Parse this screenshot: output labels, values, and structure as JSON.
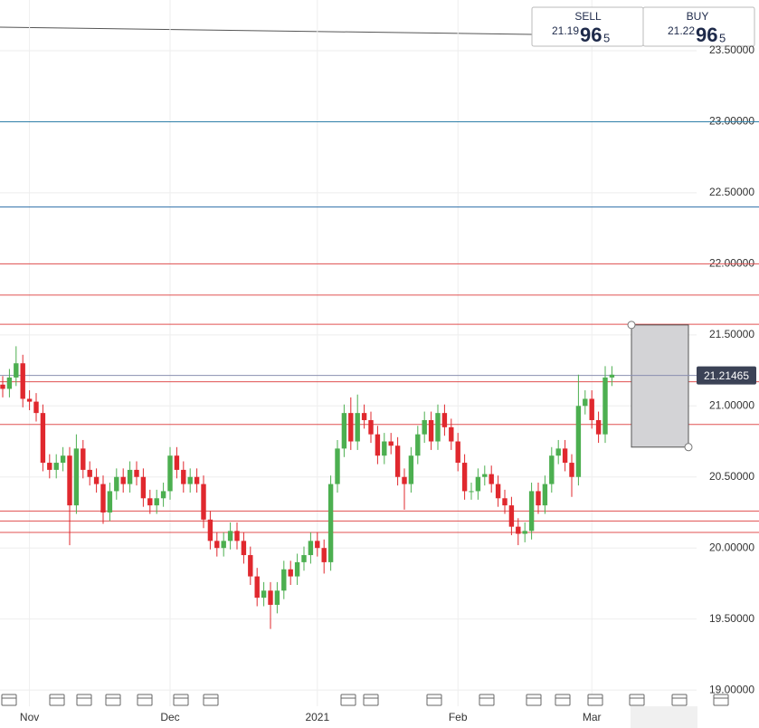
{
  "chart_data": {
    "type": "candlestick",
    "categories": [
      null,
      null,
      null,
      null,
      "Nov",
      null,
      null,
      null,
      null,
      null,
      null,
      null,
      null,
      null,
      null,
      null,
      null,
      null,
      null,
      null,
      null,
      null,
      null,
      null,
      null,
      "Dec",
      null,
      null,
      null,
      null,
      null,
      null,
      null,
      null,
      null,
      null,
      null,
      null,
      null,
      null,
      null,
      null,
      null,
      null,
      null,
      null,
      null,
      "2021",
      null,
      null,
      null,
      null,
      null,
      null,
      null,
      null,
      null,
      null,
      null,
      null,
      null,
      null,
      null,
      null,
      null,
      null,
      null,
      null,
      "Feb",
      null,
      null,
      null,
      null,
      null,
      null,
      null,
      null,
      null,
      null,
      null,
      null,
      null,
      null,
      null,
      null,
      null,
      null,
      null,
      "Mar",
      null,
      null,
      null
    ],
    "open": [
      21.15,
      21.12,
      21.2,
      21.3,
      21.05,
      21.03,
      20.95,
      20.6,
      20.55,
      20.6,
      20.65,
      20.3,
      20.7,
      20.55,
      20.5,
      20.45,
      20.25,
      20.4,
      20.5,
      20.45,
      20.55,
      20.5,
      20.35,
      20.3,
      20.35,
      20.4,
      20.65,
      20.55,
      20.45,
      20.5,
      20.45,
      20.2,
      20.05,
      20.0,
      20.05,
      20.12,
      20.05,
      19.95,
      19.8,
      19.65,
      19.7,
      19.6,
      19.7,
      19.85,
      19.8,
      19.9,
      19.95,
      20.05,
      20.0,
      19.9,
      20.45,
      20.7,
      20.95,
      20.75,
      20.95,
      20.9,
      20.8,
      20.65,
      20.75,
      20.72,
      20.5,
      20.45,
      20.65,
      20.8,
      20.9,
      20.75,
      20.95,
      20.85,
      20.75,
      20.6,
      20.4,
      20.4,
      20.5,
      20.52,
      20.45,
      20.35,
      20.3,
      20.15,
      20.1,
      20.12,
      20.4,
      20.3,
      20.45,
      20.65,
      20.7,
      20.6,
      20.5,
      21.0,
      21.05,
      20.9,
      20.8,
      21.2
    ],
    "high": [
      21.21,
      21.26,
      21.42,
      21.36,
      21.11,
      21.09,
      21.01,
      20.66,
      20.66,
      20.71,
      20.71,
      20.8,
      20.76,
      20.61,
      20.56,
      20.51,
      20.46,
      20.56,
      20.56,
      20.61,
      20.61,
      20.56,
      20.41,
      20.41,
      20.46,
      20.71,
      20.71,
      20.61,
      20.56,
      20.56,
      20.51,
      20.26,
      20.11,
      20.11,
      20.18,
      20.18,
      20.11,
      20.01,
      19.86,
      19.76,
      19.76,
      19.76,
      19.91,
      19.91,
      19.96,
      20.01,
      20.11,
      20.11,
      20.06,
      20.51,
      20.76,
      21.01,
      21.06,
      21.08,
      21.01,
      20.96,
      20.86,
      20.81,
      20.81,
      20.78,
      20.56,
      20.71,
      20.86,
      20.96,
      20.96,
      21.01,
      21.01,
      20.91,
      20.81,
      20.66,
      20.46,
      20.56,
      20.58,
      20.58,
      20.51,
      20.41,
      20.36,
      20.21,
      20.18,
      20.46,
      20.46,
      20.51,
      20.71,
      20.76,
      20.76,
      20.66,
      21.22,
      21.11,
      21.11,
      20.96,
      21.28,
      21.28
    ],
    "low": [
      21.06,
      21.06,
      21.14,
      20.99,
      20.97,
      20.89,
      20.54,
      20.49,
      20.49,
      20.54,
      20.02,
      20.24,
      20.49,
      20.44,
      20.39,
      20.17,
      20.19,
      20.34,
      20.39,
      20.39,
      20.44,
      20.29,
      20.24,
      20.24,
      20.29,
      20.34,
      20.49,
      20.39,
      20.39,
      20.39,
      20.14,
      19.99,
      19.94,
      19.94,
      19.99,
      19.99,
      19.89,
      19.74,
      19.59,
      19.59,
      19.43,
      19.54,
      19.64,
      19.74,
      19.74,
      19.84,
      19.89,
      19.94,
      19.82,
      19.84,
      20.39,
      20.64,
      20.69,
      20.69,
      20.84,
      20.74,
      20.59,
      20.59,
      20.66,
      20.44,
      20.27,
      20.39,
      20.59,
      20.74,
      20.69,
      20.69,
      20.79,
      20.69,
      20.54,
      20.34,
      20.34,
      20.34,
      20.44,
      20.39,
      20.29,
      20.24,
      20.09,
      20.02,
      20.04,
      20.06,
      20.24,
      20.24,
      20.39,
      20.59,
      20.54,
      20.36,
      20.44,
      20.94,
      20.84,
      20.74,
      20.74,
      21.14
    ],
    "close": [
      21.12,
      21.2,
      21.3,
      21.05,
      21.03,
      20.95,
      20.6,
      20.55,
      20.6,
      20.65,
      20.3,
      20.7,
      20.55,
      20.5,
      20.45,
      20.25,
      20.4,
      20.5,
      20.45,
      20.55,
      20.5,
      20.35,
      20.3,
      20.35,
      20.4,
      20.65,
      20.55,
      20.45,
      20.5,
      20.45,
      20.2,
      20.05,
      20.0,
      20.05,
      20.12,
      20.05,
      19.95,
      19.8,
      19.65,
      19.7,
      19.6,
      19.7,
      19.85,
      19.8,
      19.9,
      19.95,
      20.05,
      20.0,
      19.9,
      20.45,
      20.7,
      20.95,
      20.75,
      20.95,
      20.9,
      20.8,
      20.65,
      20.75,
      20.72,
      20.5,
      20.45,
      20.65,
      20.8,
      20.9,
      20.75,
      20.95,
      20.85,
      20.75,
      20.6,
      20.4,
      20.4,
      20.5,
      20.52,
      20.45,
      20.35,
      20.3,
      20.15,
      20.1,
      20.12,
      20.4,
      20.3,
      20.45,
      20.65,
      20.7,
      20.6,
      20.5,
      21.0,
      21.05,
      20.9,
      20.8,
      21.2,
      21.22
    ],
    "up_color": "#4caf50",
    "down_color": "#e0282e",
    "ylim": [
      18.886,
      23.857
    ],
    "yticks": [
      {
        "value": 19.0,
        "label": "19.00000"
      },
      {
        "value": 19.5,
        "label": "19.50000"
      },
      {
        "value": 20.0,
        "label": "20.00000"
      },
      {
        "value": 20.5,
        "label": "20.50000"
      },
      {
        "value": 21.0,
        "label": "21.00000"
      },
      {
        "value": 21.5,
        "label": "21.50000"
      },
      {
        "value": 22.0,
        "label": "22.00000"
      },
      {
        "value": 22.5,
        "label": "22.50000"
      },
      {
        "value": 23.0,
        "label": "23.00000"
      },
      {
        "value": 23.5,
        "label": "23.50000"
      }
    ],
    "grid": true,
    "levels": [
      {
        "value": 23.0,
        "color": "#2f7fa8"
      },
      {
        "value": 22.4,
        "color": "#2f6fa8"
      },
      {
        "value": 22.0,
        "color": "#e05050"
      },
      {
        "value": 21.78,
        "color": "#e05050"
      },
      {
        "value": 21.575,
        "color": "#e05050"
      },
      {
        "value": 21.17,
        "color": "#e05050"
      },
      {
        "value": 20.87,
        "color": "#e05050"
      },
      {
        "value": 20.26,
        "color": "#e05050"
      },
      {
        "value": 20.19,
        "color": "#e05050"
      },
      {
        "value": 20.11,
        "color": "#e05050"
      }
    ],
    "current_price": {
      "value": 21.21465,
      "label": "21.21465"
    },
    "zone": {
      "top": 21.57,
      "bottom": 20.71
    },
    "sell": {
      "label": "SELL",
      "price": "21.19",
      "big": "96",
      "small": "5"
    },
    "buy": {
      "label": "BUY",
      "price": "21.22",
      "big": "96",
      "small": "5"
    }
  }
}
